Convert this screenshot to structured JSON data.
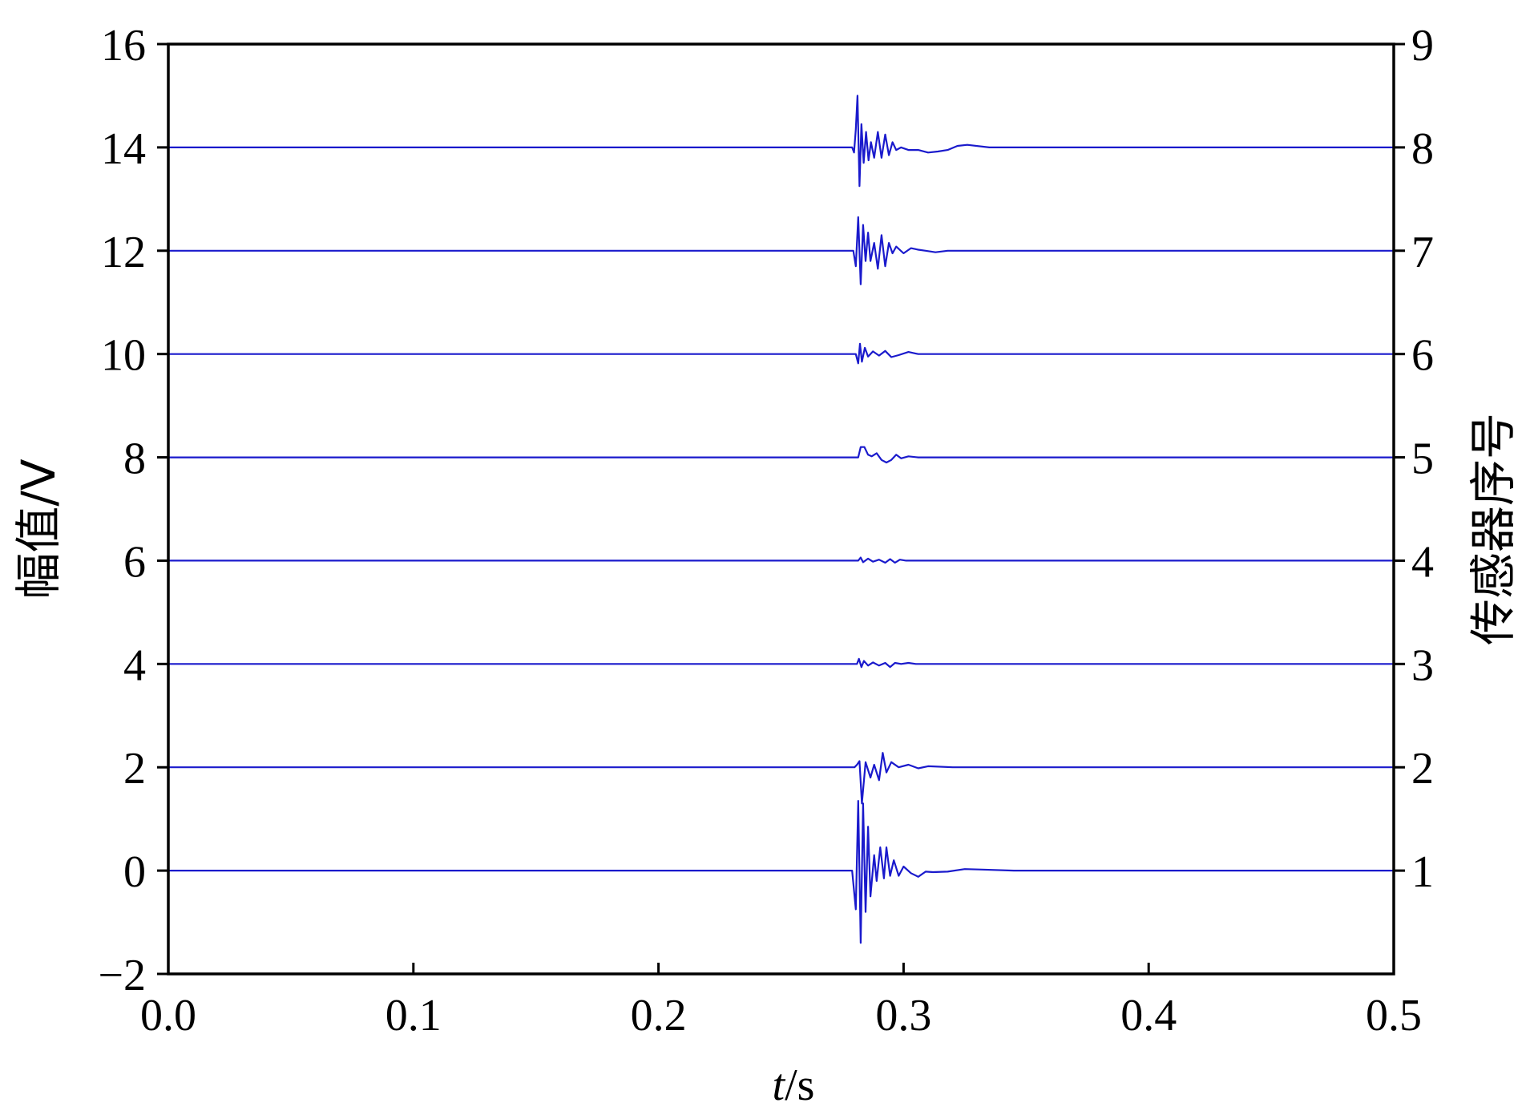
{
  "chart_data": {
    "type": "line",
    "title": "",
    "xlabel": {
      "italic": "t",
      "rest": "/s"
    },
    "ylabel": "幅值/V",
    "y2label": "传感器序号",
    "xlim": [
      0.0,
      0.5
    ],
    "ylim": [
      -2,
      16
    ],
    "y2lim": [
      0,
      9
    ],
    "xticks": [
      "0.0",
      "0.1",
      "0.2",
      "0.3",
      "0.4",
      "0.5"
    ],
    "yticks": [
      "−2",
      "0",
      "2",
      "4",
      "6",
      "8",
      "10",
      "12",
      "14",
      "16"
    ],
    "y2ticks": [
      "1",
      "2",
      "3",
      "4",
      "5",
      "6",
      "7",
      "8",
      "9"
    ],
    "grid": false,
    "line_color": "#1a1acc",
    "series": [
      {
        "sensor": 1,
        "offset": 0,
        "x": [
          0.0,
          0.279,
          0.2805,
          0.2815,
          0.2825,
          0.2835,
          0.2845,
          0.2855,
          0.2865,
          0.288,
          0.289,
          0.2905,
          0.292,
          0.293,
          0.2945,
          0.296,
          0.298,
          0.3,
          0.303,
          0.306,
          0.309,
          0.312,
          0.318,
          0.325,
          0.332,
          0.345,
          0.5
        ],
        "y": [
          0.0,
          0.0,
          -0.75,
          1.35,
          -1.4,
          1.3,
          -0.8,
          0.85,
          -0.5,
          0.3,
          -0.2,
          0.45,
          -0.15,
          0.45,
          -0.1,
          0.2,
          -0.1,
          0.08,
          -0.05,
          -0.12,
          -0.02,
          -0.03,
          -0.02,
          0.03,
          0.02,
          0.0,
          0.0
        ]
      },
      {
        "sensor": 2,
        "offset": 2,
        "x": [
          0.0,
          0.28,
          0.281,
          0.282,
          0.283,
          0.2845,
          0.2865,
          0.288,
          0.29,
          0.2915,
          0.293,
          0.295,
          0.298,
          0.302,
          0.306,
          0.31,
          0.32,
          0.5
        ],
        "y": [
          0.0,
          0.0,
          0.05,
          0.12,
          -0.7,
          0.1,
          -0.2,
          0.05,
          -0.25,
          0.28,
          -0.1,
          0.1,
          0.0,
          0.05,
          -0.02,
          0.02,
          0.0,
          0.0
        ]
      },
      {
        "sensor": 3,
        "offset": 4,
        "x": [
          0.0,
          0.281,
          0.2818,
          0.2828,
          0.2838,
          0.2855,
          0.2875,
          0.29,
          0.2925,
          0.2945,
          0.2965,
          0.299,
          0.302,
          0.305,
          0.5
        ],
        "y": [
          0.0,
          0.0,
          0.1,
          -0.06,
          0.06,
          -0.03,
          0.03,
          -0.03,
          0.02,
          -0.06,
          0.02,
          0.0,
          0.02,
          0.0,
          0.0
        ]
      },
      {
        "sensor": 4,
        "offset": 6,
        "x": [
          0.0,
          0.2815,
          0.2825,
          0.2835,
          0.2855,
          0.2875,
          0.29,
          0.2925,
          0.2945,
          0.2965,
          0.2985,
          0.301,
          0.5
        ],
        "y": [
          0.0,
          0.0,
          0.06,
          -0.03,
          0.04,
          -0.02,
          0.02,
          -0.04,
          0.03,
          -0.04,
          0.02,
          0.0,
          0.0
        ]
      },
      {
        "sensor": 5,
        "offset": 8,
        "x": [
          0.0,
          0.2815,
          0.2825,
          0.284,
          0.2855,
          0.287,
          0.289,
          0.291,
          0.293,
          0.295,
          0.297,
          0.299,
          0.302,
          0.306,
          0.32,
          0.5
        ],
        "y": [
          0.0,
          0.0,
          0.2,
          0.2,
          0.05,
          0.02,
          0.08,
          -0.05,
          -0.1,
          -0.05,
          0.05,
          -0.02,
          0.02,
          0.0,
          0.0,
          0.0
        ]
      },
      {
        "sensor": 6,
        "offset": 10,
        "x": [
          0.0,
          0.2805,
          0.2815,
          0.2822,
          0.283,
          0.2842,
          0.2855,
          0.2875,
          0.29,
          0.2925,
          0.295,
          0.298,
          0.302,
          0.306,
          0.31,
          0.5
        ],
        "y": [
          0.0,
          0.0,
          -0.18,
          0.2,
          -0.15,
          0.12,
          -0.05,
          0.05,
          -0.03,
          0.06,
          -0.06,
          -0.02,
          0.04,
          0.0,
          0.0,
          0.0
        ]
      },
      {
        "sensor": 7,
        "offset": 12,
        "x": [
          0.0,
          0.2795,
          0.2805,
          0.2815,
          0.2825,
          0.2835,
          0.2845,
          0.2855,
          0.2865,
          0.288,
          0.2895,
          0.291,
          0.2925,
          0.294,
          0.2955,
          0.297,
          0.3,
          0.303,
          0.306,
          0.309,
          0.313,
          0.318,
          0.5
        ],
        "y": [
          0.0,
          0.0,
          -0.3,
          0.65,
          -0.65,
          0.5,
          -0.2,
          0.35,
          -0.2,
          0.15,
          -0.35,
          0.3,
          -0.3,
          0.15,
          -0.05,
          0.08,
          -0.05,
          0.05,
          0.02,
          0.0,
          -0.03,
          0.0,
          0.0
        ]
      },
      {
        "sensor": 8,
        "offset": 14,
        "x": [
          0.0,
          0.279,
          0.2798,
          0.2805,
          0.2812,
          0.282,
          0.2828,
          0.2837,
          0.2847,
          0.2857,
          0.2867,
          0.288,
          0.2895,
          0.291,
          0.2925,
          0.294,
          0.2955,
          0.297,
          0.299,
          0.302,
          0.306,
          0.31,
          0.314,
          0.318,
          0.322,
          0.326,
          0.335,
          0.5
        ],
        "y": [
          0.0,
          0.0,
          -0.1,
          0.35,
          1.0,
          -0.75,
          0.45,
          -0.3,
          0.3,
          -0.25,
          0.1,
          -0.2,
          0.3,
          -0.2,
          0.25,
          -0.15,
          0.1,
          -0.05,
          0.0,
          -0.05,
          -0.05,
          -0.1,
          -0.08,
          -0.05,
          0.03,
          0.05,
          0.0,
          0.0
        ]
      }
    ]
  }
}
